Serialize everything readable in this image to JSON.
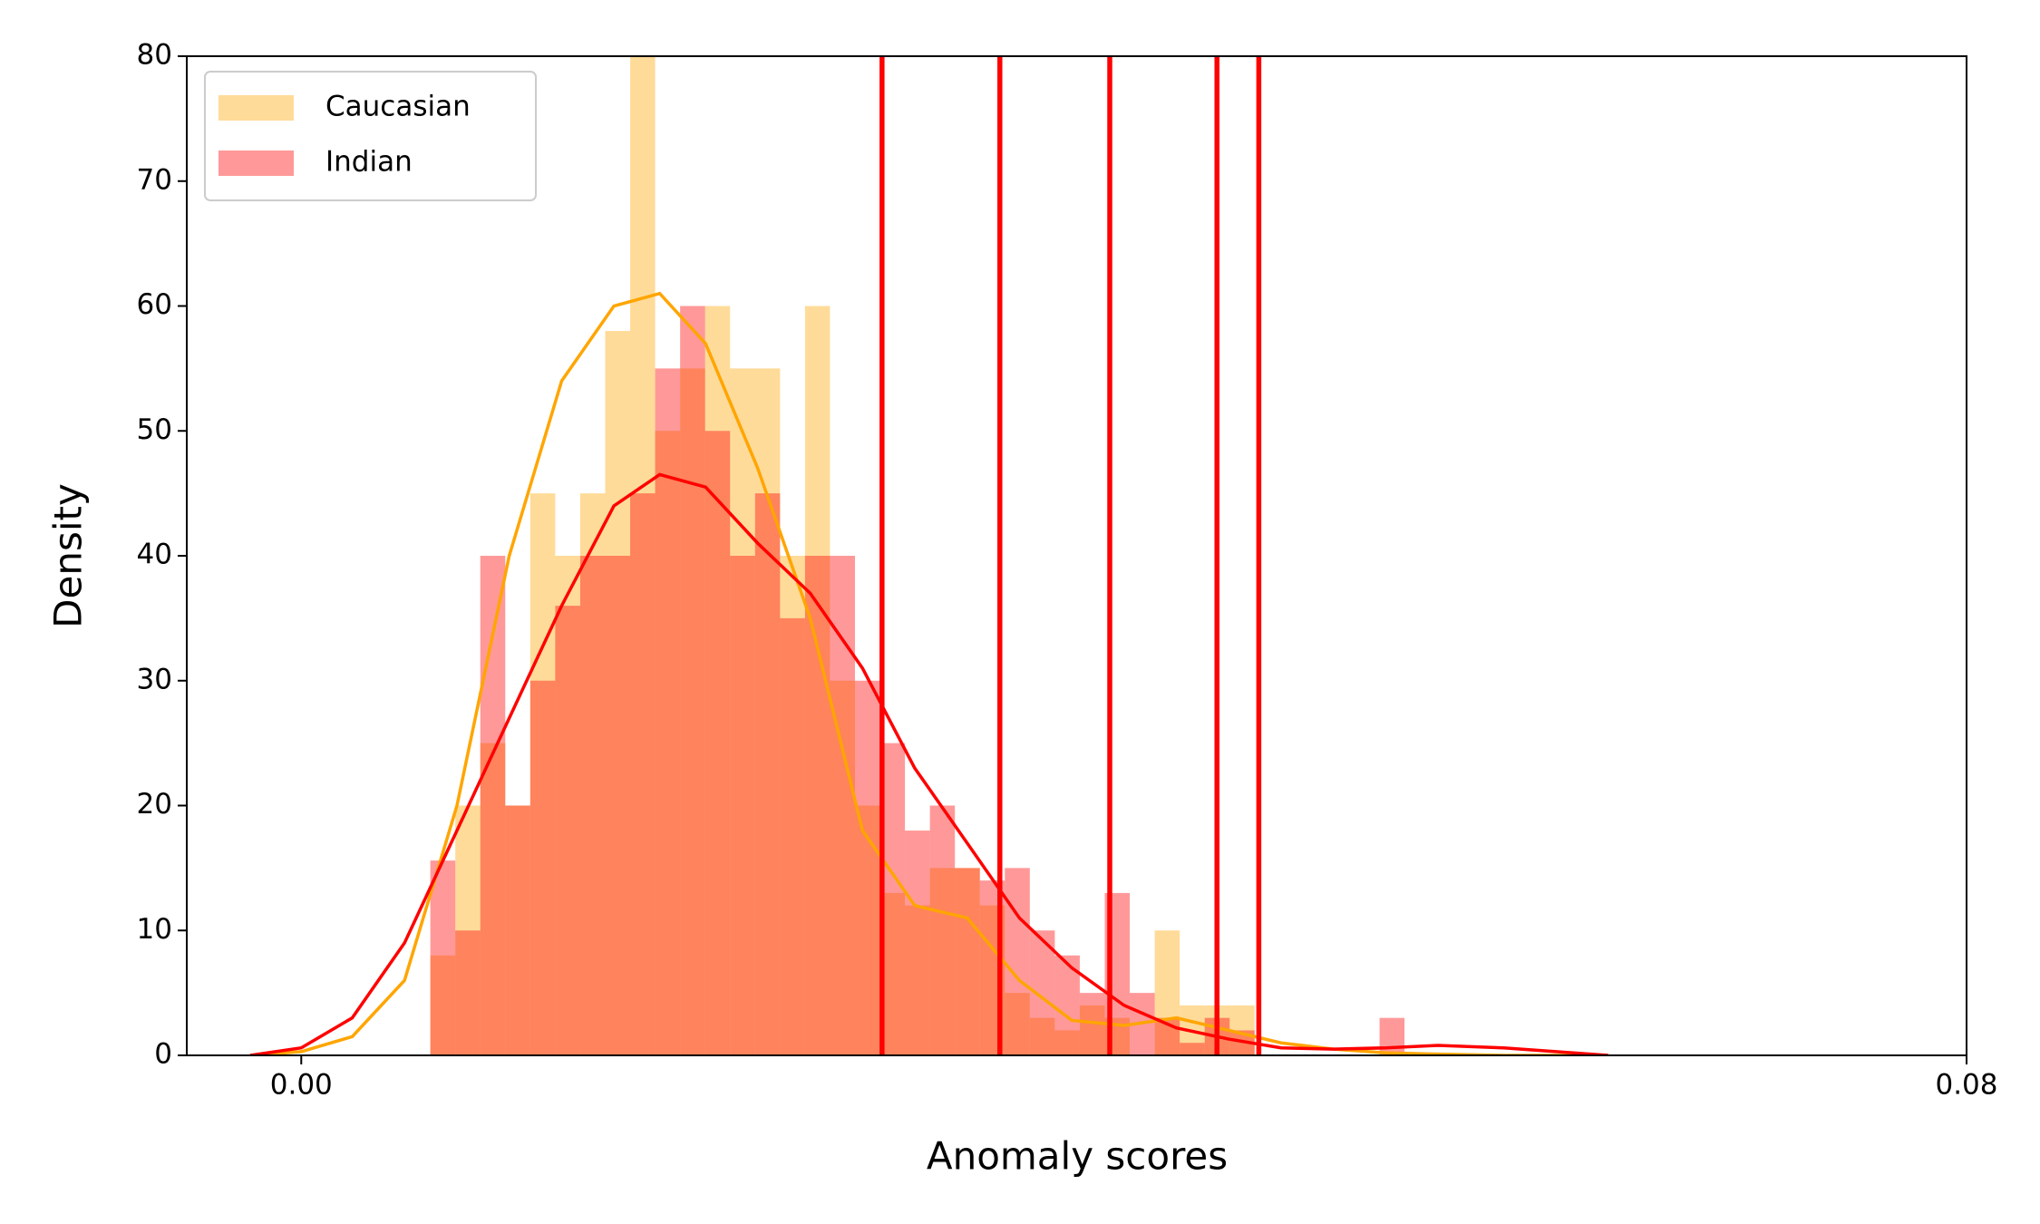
{
  "chart_data": {
    "type": "histogram",
    "xlabel": "Anomaly scores",
    "ylabel": "Density",
    "xlim": [
      -0.0055,
      0.08
    ],
    "ylim": [
      0,
      80
    ],
    "xticks": [
      {
        "value": 0,
        "label": "0.00"
      },
      {
        "value": 0.08,
        "label": "0.08"
      }
    ],
    "yticks": [
      0,
      10,
      20,
      30,
      40,
      50,
      60,
      70,
      80
    ],
    "legend": "upper left",
    "alpha": 0.4,
    "bins": [
      0.0062,
      0.0074,
      0.0086,
      0.0098,
      0.011,
      0.0122,
      0.0134,
      0.0146,
      0.0158,
      0.017,
      0.0182,
      0.0194,
      0.0206,
      0.0218,
      0.023,
      0.0242,
      0.0254,
      0.0266,
      0.0278,
      0.029,
      0.0302,
      0.0314,
      0.0326,
      0.0338,
      0.035,
      0.0362,
      0.0374,
      0.0386,
      0.0398,
      0.041,
      0.0422,
      0.0434,
      0.0446,
      0.0458,
      0.047,
      0.0482,
      0.0494,
      0.0506,
      0.0518,
      0.053,
      0.0542
    ],
    "series": [
      {
        "name": "Caucasian",
        "color": "#ffa500",
        "values": [
          8,
          20,
          25,
          20,
          45,
          40,
          45,
          58,
          82,
          50,
          55,
          60,
          55,
          55,
          40,
          60,
          30,
          20,
          13,
          12,
          15,
          15,
          12,
          5,
          3,
          2,
          4,
          3,
          0,
          10,
          4,
          4,
          4,
          0,
          0,
          0,
          0,
          0,
          0,
          0
        ]
      },
      {
        "name": "Indian",
        "color": "#ff0000",
        "values": [
          15.6,
          10,
          40,
          20,
          30,
          36,
          40,
          40,
          45,
          55,
          60,
          50,
          40,
          45,
          35,
          40,
          40,
          30,
          25,
          18,
          20,
          15,
          14,
          15,
          10,
          8,
          5,
          13,
          5,
          3,
          1,
          3,
          2,
          0,
          0,
          0,
          0,
          0,
          3,
          0
        ]
      }
    ],
    "kde_x": [
      -0.00245,
      0,
      0.00245,
      0.00496,
      0.00748,
      0.00999,
      0.01251,
      0.01502,
      0.01722,
      0.01942,
      0.02193,
      0.02445,
      0.02696,
      0.02947,
      0.03199,
      0.0345,
      0.03702,
      0.03953,
      0.04204,
      0.04456,
      0.04707,
      0.04959,
      0.0521,
      0.05461,
      0.05776,
      0.06278
    ],
    "kde": [
      {
        "color": "#ffa500",
        "values": [
          0,
          0.3,
          1.5,
          6,
          20,
          40,
          54,
          60,
          61,
          57,
          47,
          35,
          18,
          12,
          11,
          6,
          2.8,
          2.4,
          3,
          2,
          1,
          0.5,
          0.2,
          0.1,
          0,
          0
        ]
      },
      {
        "color": "#ff0000",
        "values": [
          0,
          0.6,
          3,
          9,
          18,
          27,
          36,
          44,
          46.5,
          45.5,
          41,
          37,
          31,
          23,
          17,
          11,
          7,
          4,
          2.2,
          1.3,
          0.6,
          0.5,
          0.6,
          0.8,
          0.6,
          0
        ]
      }
    ],
    "vlines": {
      "color": "#ff0000",
      "values": [
        0.0279,
        0.03356,
        0.03884,
        0.04399,
        0.046
      ]
    }
  }
}
